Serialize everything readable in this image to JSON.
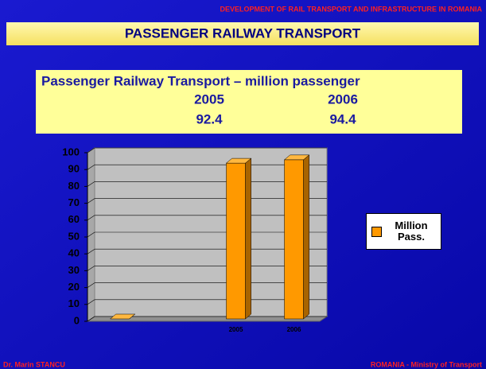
{
  "header": "DEVELOPMENT OF RAIL TRANSPORT AND INFRASTRUCTURE IN ROMANIA",
  "banner": "PASSENGER RAILWAY TRANSPORT",
  "table": {
    "title": "Passenger Railway Transport – million passenger",
    "rows": [
      [
        "2005",
        "2006"
      ],
      [
        "92.4",
        "94.4"
      ]
    ]
  },
  "footer": {
    "left": "Dr. Marin STANCU",
    "right": "ROMANIA - Ministry of Transport"
  },
  "chart_data": {
    "type": "bar3d",
    "categories": [
      null,
      null,
      "2005",
      "2006"
    ],
    "series": [
      {
        "name": "Million Pass.",
        "color": "#ff9900",
        "values": [
          0,
          null,
          92.4,
          94.4
        ]
      }
    ],
    "ylim": [
      0,
      100
    ],
    "yticks": [
      0,
      10,
      20,
      30,
      40,
      50,
      60,
      70,
      80,
      90,
      100
    ],
    "grid": true,
    "legend": "right"
  }
}
